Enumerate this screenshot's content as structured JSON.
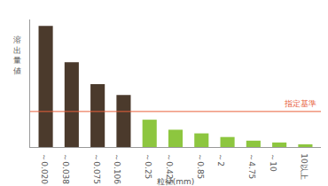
{
  "chart_data": {
    "type": "bar",
    "x_label": "粒径(mm)",
    "y_label": "溶出量値",
    "categories": [
      "～0.020",
      "～0.038",
      "～0.075",
      "～0.106",
      "～0.25",
      "～0.425",
      "～0.85",
      "～2",
      "～4.75",
      "～10",
      "10以上"
    ],
    "values": [
      133,
      93,
      69,
      57,
      30,
      19,
      15,
      11,
      7,
      5,
      3
    ],
    "colors": [
      "#4b3a2c",
      "#4b3a2c",
      "#4b3a2c",
      "#4b3a2c",
      "#8dc63f",
      "#8dc63f",
      "#8dc63f",
      "#8dc63f",
      "#8dc63f",
      "#8dc63f",
      "#8dc63f"
    ],
    "threshold": {
      "value": 39,
      "label": "指定基準",
      "color": "#e8603c"
    },
    "ylim": [
      0,
      140
    ],
    "yticks": [],
    "grid": false,
    "tick_labels": "x"
  }
}
